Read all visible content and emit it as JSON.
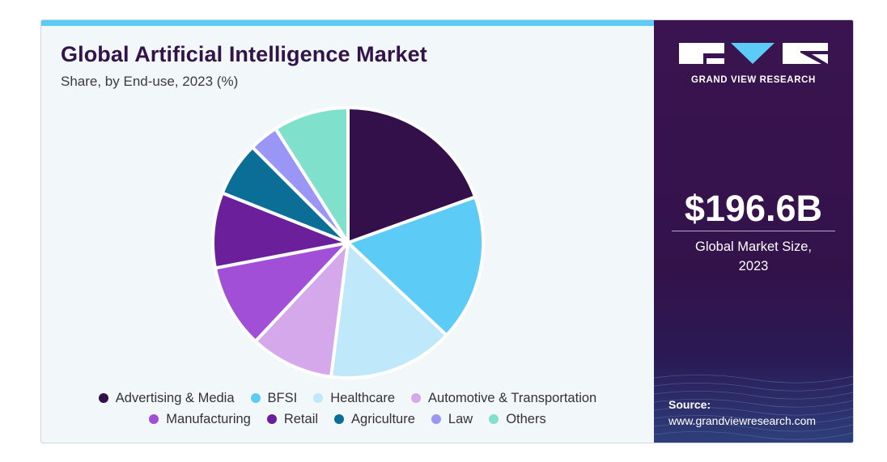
{
  "header": {
    "title": "Global Artificial Intelligence Market",
    "subtitle": "Share, by End-use, 2023 (%)"
  },
  "brand": {
    "name": "GRAND VIEW RESEARCH"
  },
  "highlight": {
    "value": "$196.6B",
    "label_line1": "Global Market Size,",
    "label_line2": "2023"
  },
  "source": {
    "label": "Source:",
    "url": "www.grandviewresearch.com"
  },
  "chart_data": {
    "type": "pie",
    "title": "Global Artificial Intelligence Market",
    "subtitle": "Share, by End-use, 2023 (%)",
    "legend_position": "bottom",
    "slices": [
      {
        "label": "Advertising & Media",
        "value": 19.5,
        "color": "#33104a"
      },
      {
        "label": "BFSI",
        "value": 17.5,
        "color": "#5ccbf5"
      },
      {
        "label": "Healthcare",
        "value": 15.0,
        "color": "#bfe8fa"
      },
      {
        "label": "Automotive & Transportation",
        "value": 10.0,
        "color": "#d4a8ea"
      },
      {
        "label": "Manufacturing",
        "value": 10.0,
        "color": "#a24fd8"
      },
      {
        "label": "Retail",
        "value": 9.0,
        "color": "#6b1f9a"
      },
      {
        "label": "Agriculture",
        "value": 6.5,
        "color": "#0a6e96"
      },
      {
        "label": "Law",
        "value": 3.5,
        "color": "#9a96f5"
      },
      {
        "label": "Others",
        "value": 9.0,
        "color": "#7fe0cc"
      }
    ]
  }
}
